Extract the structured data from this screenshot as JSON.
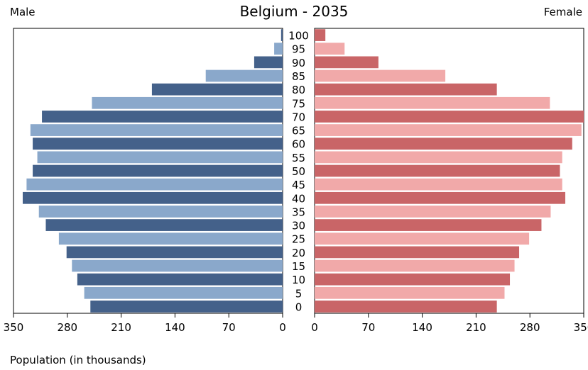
{
  "chart_data": {
    "type": "bar",
    "title": "Belgium - 2035",
    "left_label": "Male",
    "right_label": "Female",
    "xlabel": "Population (in thousands)",
    "xlim": [
      0,
      350
    ],
    "x_ticks_left": [
      "350",
      "280",
      "210",
      "140",
      "70",
      "0"
    ],
    "x_ticks_right": [
      "0",
      "70",
      "140",
      "210",
      "280",
      "350"
    ],
    "categories": [
      "100",
      "95",
      "90",
      "85",
      "80",
      "75",
      "70",
      "65",
      "60",
      "55",
      "50",
      "45",
      "40",
      "35",
      "30",
      "25",
      "20",
      "15",
      "10",
      "5",
      "0"
    ],
    "series": [
      {
        "name": "Male",
        "values": [
          2,
          11,
          37,
          100,
          170,
          248,
          313,
          328,
          325,
          319,
          325,
          333,
          338,
          317,
          308,
          291,
          281,
          274,
          267,
          258,
          250
        ]
      },
      {
        "name": "Female",
        "values": [
          14,
          39,
          83,
          170,
          237,
          306,
          350,
          347,
          335,
          322,
          319,
          322,
          326,
          307,
          295,
          279,
          266,
          260,
          254,
          247,
          237
        ]
      }
    ],
    "colors": {
      "male_dark": "#44618a",
      "male_light": "#8aa8cb",
      "female_dark": "#c96567",
      "female_light": "#f1a9a9"
    }
  }
}
